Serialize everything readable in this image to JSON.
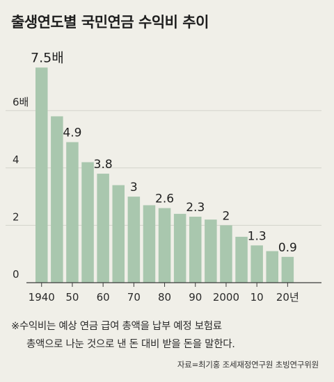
{
  "chart_data": {
    "type": "bar",
    "title": "출생연도별 국민연금 수익비 추이",
    "categories": [
      "1940",
      "1945",
      "1950",
      "1955",
      "1960",
      "1965",
      "1970",
      "1975",
      "1980",
      "1985",
      "1990",
      "1995",
      "2000",
      "2005",
      "2010",
      "2015",
      "2020"
    ],
    "x_tick_labels": [
      {
        "index": 0,
        "label": "1940"
      },
      {
        "index": 2,
        "label": "50"
      },
      {
        "index": 4,
        "label": "60"
      },
      {
        "index": 6,
        "label": "70"
      },
      {
        "index": 8,
        "label": "80"
      },
      {
        "index": 10,
        "label": "90"
      },
      {
        "index": 12,
        "label": "2000"
      },
      {
        "index": 14,
        "label": "10"
      },
      {
        "index": 16,
        "label": "20년"
      }
    ],
    "values": [
      7.5,
      5.8,
      4.9,
      4.2,
      3.8,
      3.4,
      3.0,
      2.7,
      2.6,
      2.4,
      2.3,
      2.2,
      2.0,
      1.6,
      1.3,
      1.1,
      0.9
    ],
    "data_labels": [
      {
        "index": 0,
        "label": "7.5배"
      },
      {
        "index": 2,
        "label": "4.9"
      },
      {
        "index": 4,
        "label": "3.8"
      },
      {
        "index": 6,
        "label": "3"
      },
      {
        "index": 8,
        "label": "2.6"
      },
      {
        "index": 10,
        "label": "2.3"
      },
      {
        "index": 12,
        "label": "2"
      },
      {
        "index": 14,
        "label": "1.3"
      },
      {
        "index": 16,
        "label": "0.9"
      }
    ],
    "y_ticks": [
      {
        "value": 0,
        "label": "0"
      },
      {
        "value": 2,
        "label": "2"
      },
      {
        "value": 4,
        "label": "4"
      },
      {
        "value": 6,
        "label": "6배"
      }
    ],
    "ylim": [
      0,
      8
    ],
    "xlabel": "",
    "ylabel": "",
    "grid": true,
    "colors": {
      "bar": "#a9c7ae",
      "grid": "#d3d3cb",
      "axis": "#3a3a3a",
      "background": "#f0efe8"
    }
  },
  "footnote": {
    "line1": "※수익비는 예상 연금 급여 총액을 납부 예정 보험료",
    "line2": "총액으로 나눈 것으로 낸 돈 대비 받을 돈을 말한다."
  },
  "source": "자료=최기홍 조세재정연구원 초빙연구위원"
}
